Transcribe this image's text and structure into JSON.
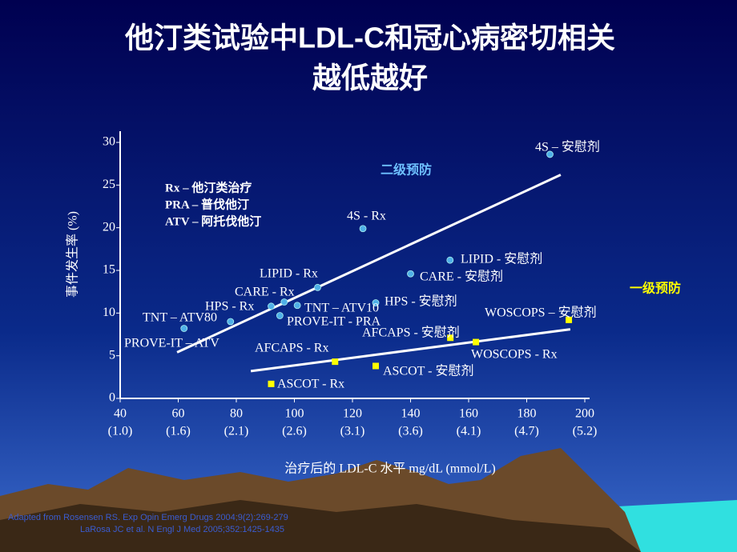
{
  "title": [
    "他汀类试验中LDL-C和冠心病密切相关",
    "越低越好"
  ],
  "chart_data": {
    "type": "scatter",
    "y_label": "事件发生率 (%)",
    "x_label": "治疗后的 LDL-C 水平  mg/dL (mmol/L)",
    "xlim": [
      40,
      200
    ],
    "ylim": [
      0,
      30
    ],
    "xticks": [
      40,
      60,
      80,
      100,
      120,
      140,
      160,
      180,
      200
    ],
    "xticks_mmol": [
      "(1.0)",
      "(1.6)",
      "(2.1)",
      "(2.6)",
      "(3.1)",
      "(3.6)",
      "(4.1)",
      "(4.7)",
      "(5.2)"
    ],
    "yticks": [
      0,
      5,
      10,
      15,
      20,
      25,
      30
    ],
    "notes": [
      "Rx – 他汀类治疗",
      "PRA – 普伐他汀",
      "ATV – 阿托伐他汀"
    ],
    "series": [
      {
        "name": "二级预防",
        "color": "#4fb0e8",
        "marker": "circle",
        "labels": [
          "4S – 安慰剂",
          "4S - Rx",
          "LIPID - 安慰剂",
          "CARE - 安慰剂",
          "LIPID - Rx",
          "CARE - Rx",
          "HPS - Rx",
          "HPS - 安慰剂",
          "TNT – ATV10",
          "PROVE-IT - PRA",
          "TNT – ATV80",
          "PROVE-IT – ATV"
        ],
        "x": [
          188,
          123.6,
          153.6,
          140,
          108,
          96.5,
          92,
          128,
          101,
          95,
          78,
          62
        ],
        "values": [
          28.6,
          19.9,
          16.2,
          14.6,
          13,
          11.3,
          10.8,
          11.2,
          10.9,
          9.7,
          9,
          8.2
        ],
        "trend": {
          "x": [
            59.6,
            191.7
          ],
          "y": [
            5.4,
            26.2
          ]
        }
      },
      {
        "name": "一级预防",
        "color": "#ffff00",
        "marker": "square",
        "labels": [
          "WOSCOPS – 安慰剂",
          "WOSCOPS - Rx",
          "AFCAPS - 安慰剂",
          "AFCAPS - Rx",
          "ASCOT - 安慰剂",
          "ASCOT - Rx"
        ],
        "x": [
          194.5,
          162.5,
          153.7,
          114,
          128,
          92
        ],
        "values": [
          9.2,
          6.6,
          7.1,
          4.3,
          3.8,
          1.7
        ],
        "trend": {
          "x": [
            85,
            195
          ],
          "y": [
            3.2,
            8.1
          ]
        }
      }
    ]
  },
  "sources": [
    "Adapted from Rosensen RS. Exp Opin Emerg Drugs 2004;9(2):269-279",
    "LaRosa JC et al. N Engl J Med 2005;352:1425-1435"
  ]
}
